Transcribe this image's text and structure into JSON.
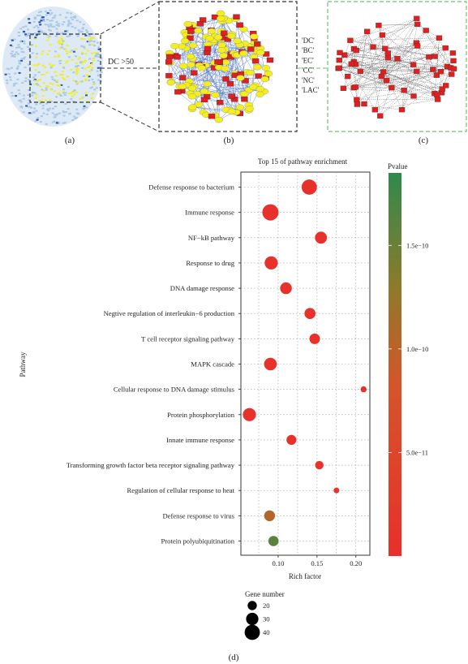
{
  "panels": {
    "a": {
      "label": "(a)",
      "filter_text": "DC >50"
    },
    "b": {
      "label": "(b)",
      "metrics": [
        "'DC'",
        "'BC'",
        "'EC'",
        "'CC'",
        "'NC'",
        "'LAC'"
      ]
    },
    "c": {
      "label": "(c)"
    },
    "d": {
      "label": "(d)"
    }
  },
  "colors": {
    "pvalue_low": "#e8302a",
    "pvalue_mid": "#8e7a2a",
    "pvalue_high": "#2e8a4b",
    "hub_node": "#e02020",
    "neighbor_node": "#f2ee20",
    "network_node": "#a9c9e6",
    "panel_a_box": "#333333",
    "panel_c_box": "#6cc26c"
  },
  "chart_data": {
    "type": "scatter",
    "title": "Top 15 of pathway enrichment",
    "xlabel": "Rich factor",
    "ylabel": "Pathway",
    "xlim": [
      0.052,
      0.218
    ],
    "xticks": [
      0.1,
      0.15,
      0.2
    ],
    "xtick_labels": [
      "0.10",
      "0.15",
      "0.20"
    ],
    "grid": true,
    "legend_placement": "right",
    "categories": [
      "Defense response to bacterium",
      "Immune response",
      "NF−kB pathway",
      "Response to drug",
      "DNA damage response",
      "Negtive regulation of interleukin−6 production",
      "T cell receptor signaling pathway",
      "MAPK cascade",
      "Cellular response to DNA damage stimulus",
      "Protein phosphorylation",
      "Innate immune response",
      "Transforming growth factor beta receptor signaling pathway",
      "Regulation of cellular response to heat",
      "Defense response to virus",
      "Protein polyubiquitination"
    ],
    "series": [
      {
        "rich_factor": [
          0.14,
          0.09,
          0.155,
          0.091,
          0.11,
          0.141,
          0.147,
          0.09,
          0.21,
          0.063,
          0.117,
          0.153,
          0.175,
          0.089,
          0.094
        ],
        "gene_number": [
          40,
          43,
          29,
          33,
          28,
          26,
          24,
          31,
          9,
          33,
          22,
          17,
          8,
          25,
          23
        ],
        "pvalue": [
          1e-12,
          3e-12,
          3e-12,
          3e-12,
          3e-12,
          3e-12,
          3e-12,
          3e-12,
          3e-12,
          3e-12,
          4e-12,
          6e-12,
          8e-12,
          1.05e-10,
          1.6e-10
        ]
      }
    ],
    "color_legend": {
      "title": "Pvalue",
      "min": 0,
      "max": 1.85e-10,
      "ticks": [
        5e-11,
        1e-10,
        1.5e-10
      ],
      "tick_labels": [
        "5.0e−11",
        "1.0e−10",
        "1.5e−10"
      ]
    },
    "size_legend": {
      "title": "Gene number",
      "values": [
        20,
        30,
        40
      ],
      "labels": [
        "20",
        "30",
        "40"
      ]
    }
  }
}
